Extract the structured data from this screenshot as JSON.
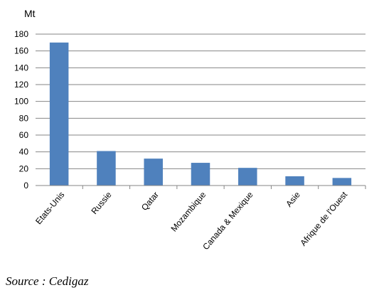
{
  "chart_data": {
    "type": "bar",
    "unit_label": "Mt",
    "categories": [
      "Etats-Unis",
      "Russie",
      "Qatar",
      "Mozambique",
      "Canada & Mexique",
      "Asie",
      "Afrique de l'Ouest"
    ],
    "values": [
      170,
      41,
      32,
      27,
      21,
      11,
      9
    ],
    "ylim": [
      0,
      180
    ],
    "yticks": [
      0,
      20,
      40,
      60,
      80,
      100,
      120,
      140,
      160,
      180
    ],
    "grid": true,
    "bar_color": "#4f81bd",
    "grid_color": "#868686"
  },
  "source": "Source : Cedigaz"
}
